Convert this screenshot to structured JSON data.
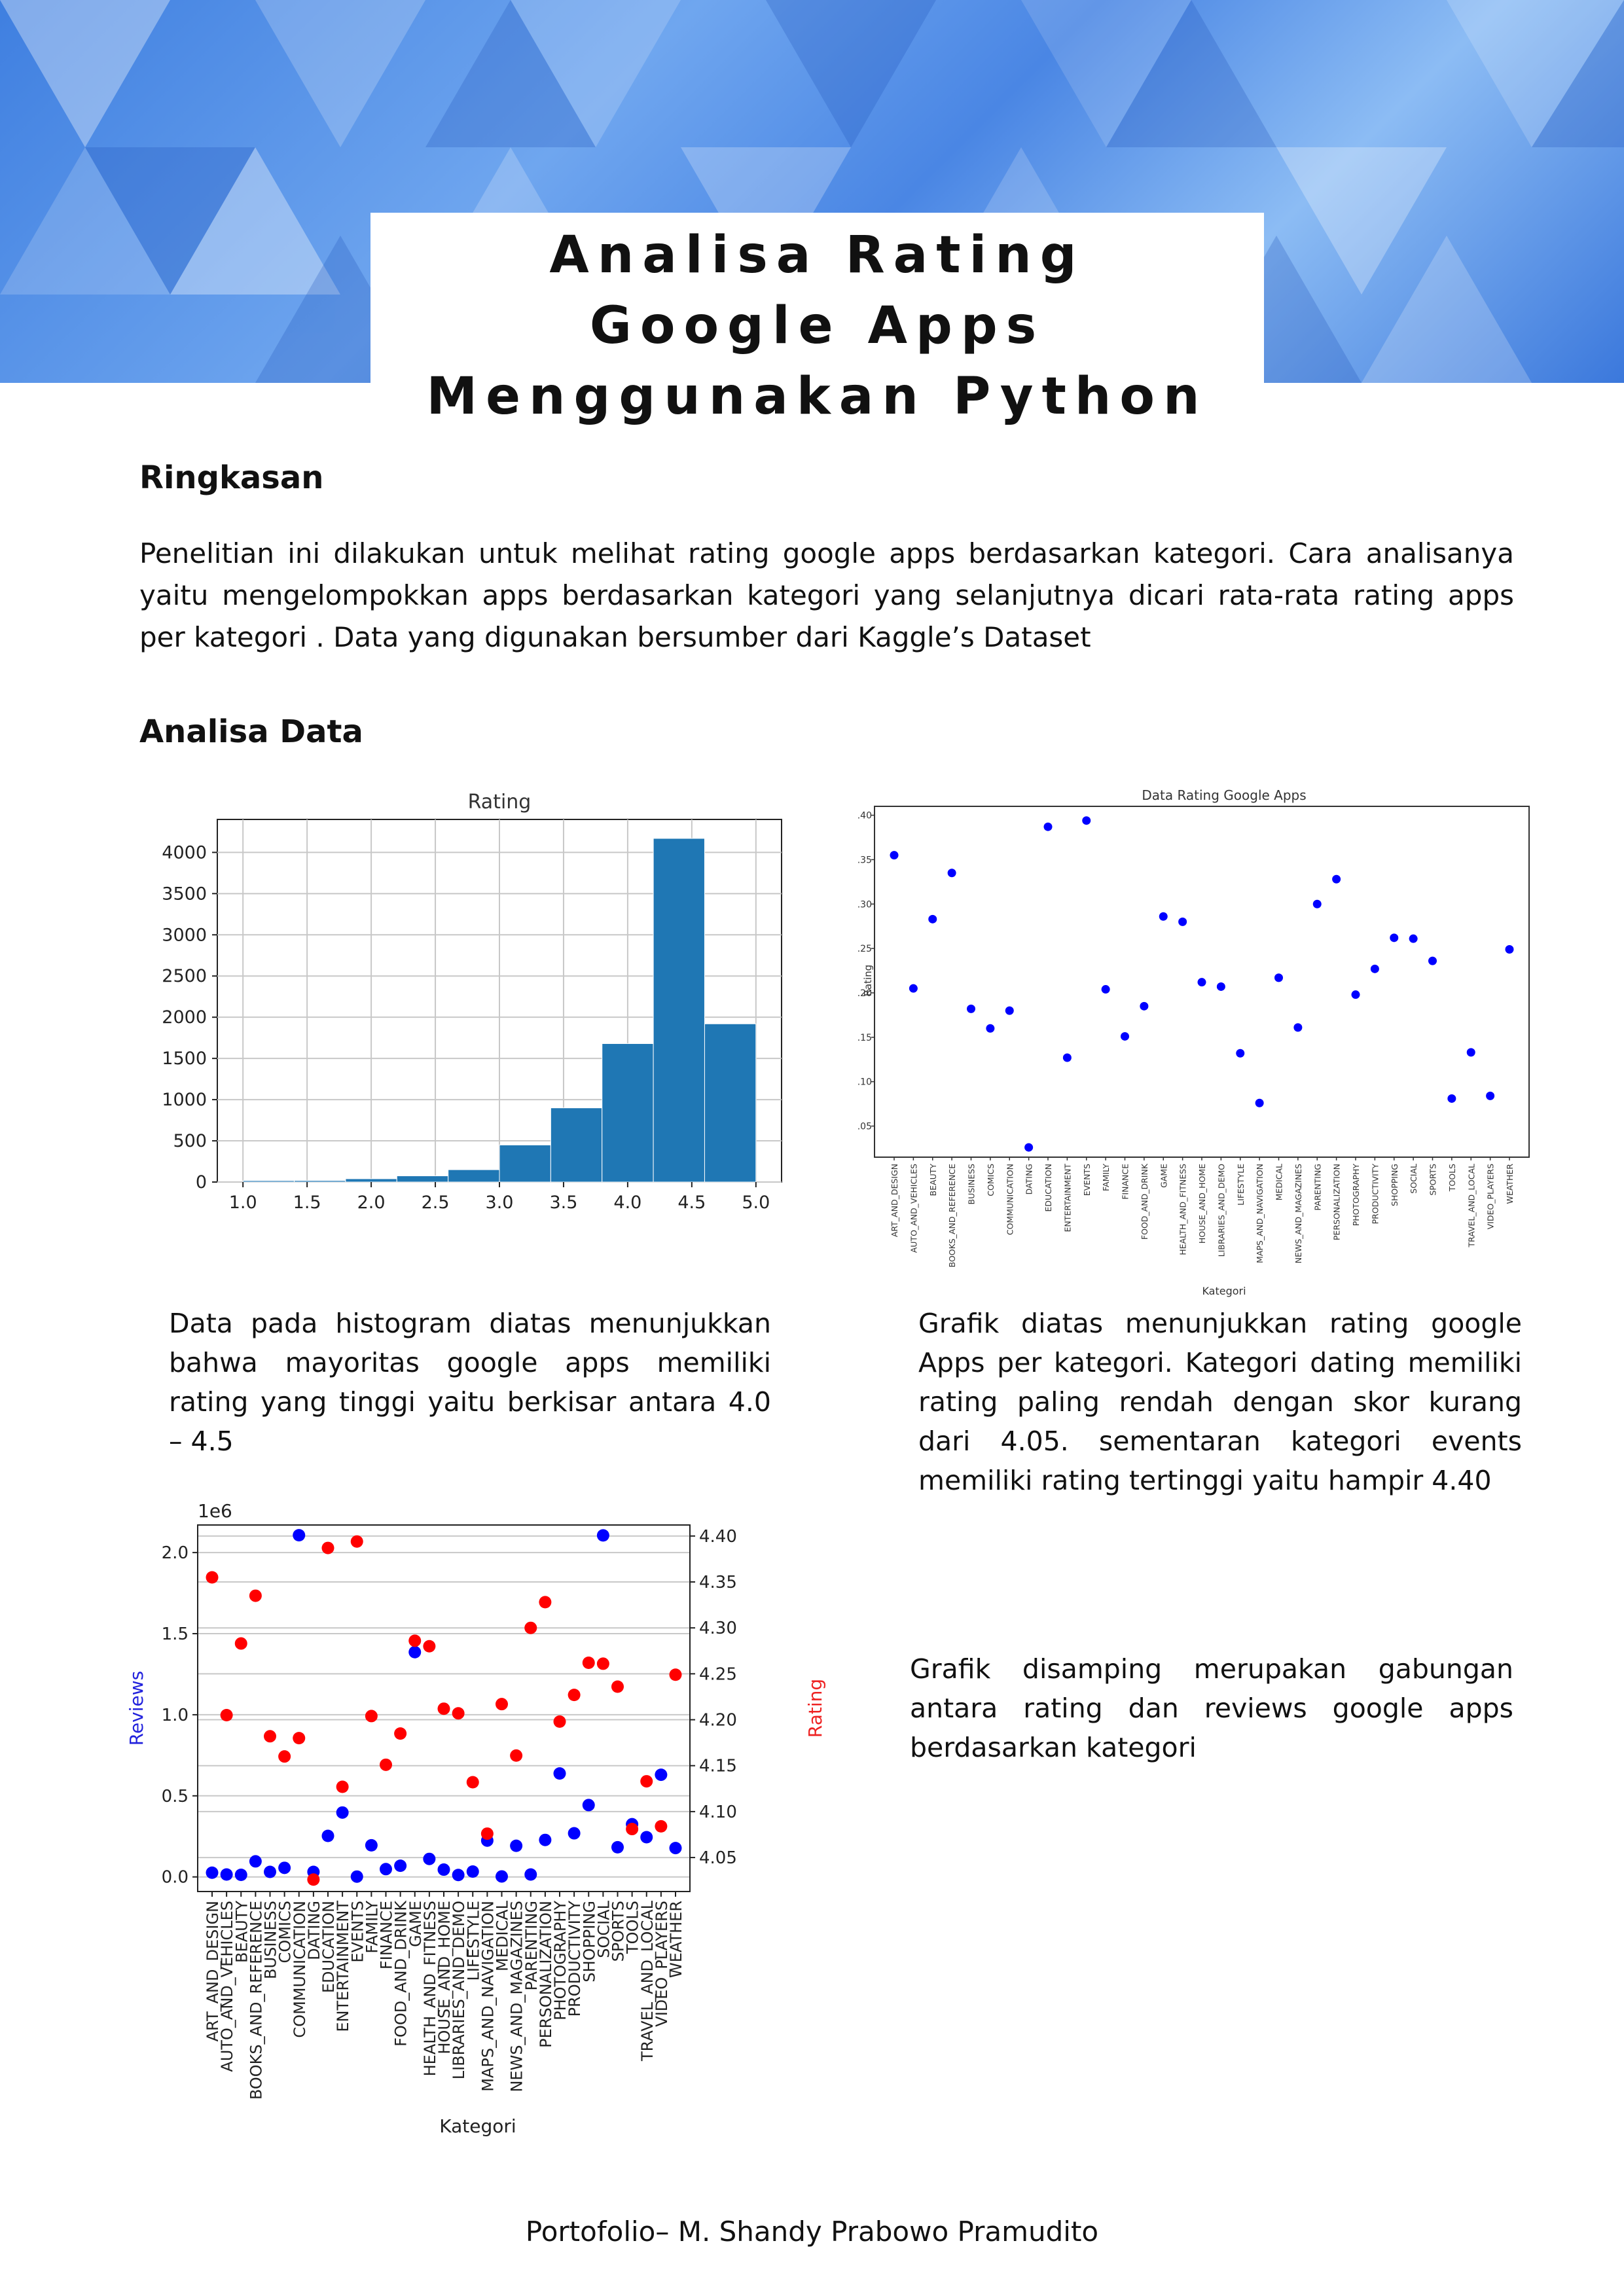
{
  "document": {
    "title": "Analisa Rating Google Apps Menggunakan Python",
    "footer": "Portofolio– M. Shandy Prabowo Pramudito"
  },
  "sections": {
    "summary": {
      "heading": "Ringkasan",
      "text": "Penelitian ini dilakukan untuk melihat rating google apps berdasarkan kategori. Cara analisanya yaitu mengelompokkan apps berdasarkan kategori yang selanjutnya dicari rata-rata rating apps per kategori . Data yang digunakan bersumber dari Kaggle’s Dataset"
    },
    "analysis": {
      "heading": "Analisa Data",
      "histogram_caption": "Data pada histogram diatas menunjukkan bahwa mayoritas google apps memiliki rating yang tinggi yaitu berkisar antara 4.0 – 4.5",
      "scatter_caption": "Grafik diatas menunjukkan rating google Apps per kategori. Kategori dating memiliki rating paling rendah dengan skor kurang dari 4.05. sementaran kategori events memiliki rating tertinggi yaitu hampir 4.40",
      "combined_caption": "Grafik disamping merupakan gabungan antara rating dan reviews google apps berdasarkan kategori"
    }
  },
  "chart_data": [
    {
      "type": "bar",
      "title": "Rating",
      "xlabel": "",
      "ylabel": "",
      "bin_edges": [
        1.0,
        1.4,
        1.8,
        2.2,
        2.6,
        3.0,
        3.4,
        3.8,
        4.2,
        4.6,
        5.0
      ],
      "values": [
        17,
        18,
        40,
        75,
        150,
        450,
        900,
        1680,
        4170,
        1920
      ],
      "xticks": [
        "1.0",
        "1.5",
        "2.0",
        "2.5",
        "3.0",
        "3.5",
        "4.0",
        "4.5",
        "5.0"
      ],
      "yticks": [
        "0",
        "500",
        "1000",
        "1500",
        "2000",
        "2500",
        "3000",
        "3500",
        "4000"
      ],
      "xlim": [
        0.8,
        5.2
      ],
      "ylim": [
        0,
        4400
      ],
      "grid": true,
      "color": "#1f77b4"
    },
    {
      "type": "scatter",
      "title": "Data Rating Google Apps",
      "xlabel": "Kategori",
      "ylabel": "Rating",
      "categories": [
        "ART_AND_DESIGN",
        "AUTO_AND_VEHICLES",
        "BEAUTY",
        "BOOKS_AND_REFERENCE",
        "BUSINESS",
        "COMICS",
        "COMMUNICATION",
        "DATING",
        "EDUCATION",
        "ENTERTAINMENT",
        "EVENTS",
        "FAMILY",
        "FINANCE",
        "FOOD_AND_DRINK",
        "GAME",
        "HEALTH_AND_FITNESS",
        "HOUSE_AND_HOME",
        "LIBRARIES_AND_DEMO",
        "LIFESTYLE",
        "MAPS_AND_NAVIGATION",
        "MEDICAL",
        "NEWS_AND_MAGAZINES",
        "PARENTING",
        "PERSONALIZATION",
        "PHOTOGRAPHY",
        "PRODUCTIVITY",
        "SHOPPING",
        "SOCIAL",
        "SPORTS",
        "TOOLS",
        "TRAVEL_AND_LOCAL",
        "VIDEO_PLAYERS",
        "WEATHER"
      ],
      "values": [
        4.355,
        4.205,
        4.283,
        4.335,
        4.182,
        4.16,
        4.18,
        4.026,
        4.387,
        4.127,
        4.394,
        4.204,
        4.151,
        4.185,
        4.286,
        4.28,
        4.212,
        4.207,
        4.132,
        4.076,
        4.217,
        4.161,
        4.3,
        4.328,
        4.198,
        4.227,
        4.262,
        4.261,
        4.236,
        4.081,
        4.133,
        4.084,
        4.249
      ],
      "yticks": [
        "4.05",
        "4.10",
        "4.15",
        "4.20",
        "4.25",
        "4.30",
        "4.35",
        "4.40"
      ],
      "ylim": [
        4.015,
        4.41
      ],
      "grid": false,
      "color": "#0000ff"
    },
    {
      "type": "scatter",
      "title": "",
      "xlabel": "Kategori",
      "ylabel": "Reviews",
      "ylabel_right": "Rating",
      "offset_label": "1e6",
      "categories": [
        "ART_AND_DESIGN",
        "AUTO_AND_VEHICLES",
        "BEAUTY",
        "BOOKS_AND_REFERENCE",
        "BUSINESS",
        "COMICS",
        "COMMUNICATION",
        "DATING",
        "EDUCATION",
        "ENTERTAINMENT",
        "EVENTS",
        "FAMILY",
        "FINANCE",
        "FOOD_AND_DRINK",
        "GAME",
        "HEALTH_AND_FITNESS",
        "HOUSE_AND_HOME",
        "LIBRARIES_AND_DEMO",
        "LIFESTYLE",
        "MAPS_AND_NAVIGATION",
        "MEDICAL",
        "NEWS_AND_MAGAZINES",
        "PARENTING",
        "PERSONALIZATION",
        "PHOTOGRAPHY",
        "PRODUCTIVITY",
        "SHOPPING",
        "SOCIAL",
        "SPORTS",
        "TOOLS",
        "TRAVEL_AND_LOCAL",
        "VIDEO_PLAYERS",
        "WEATHER"
      ],
      "series": [
        {
          "name": "Reviews",
          "axis": "left",
          "color": "#0000ff",
          "values": [
            0.026,
            0.015,
            0.013,
            0.096,
            0.031,
            0.056,
            2.107,
            0.031,
            0.253,
            0.397,
            0.002,
            0.195,
            0.048,
            0.069,
            1.386,
            0.111,
            0.045,
            0.012,
            0.033,
            0.224,
            0.003,
            0.192,
            0.015,
            0.228,
            0.638,
            0.269,
            0.443,
            2.106,
            0.183,
            0.325,
            0.245,
            0.63,
            0.178
          ]
        },
        {
          "name": "Rating",
          "axis": "right",
          "color": "#ff0000",
          "values": [
            4.355,
            4.205,
            4.283,
            4.335,
            4.182,
            4.16,
            4.18,
            4.026,
            4.387,
            4.127,
            4.394,
            4.204,
            4.151,
            4.185,
            4.286,
            4.28,
            4.212,
            4.207,
            4.132,
            4.076,
            4.217,
            4.161,
            4.3,
            4.328,
            4.198,
            4.227,
            4.262,
            4.261,
            4.236,
            4.081,
            4.133,
            4.084,
            4.249
          ]
        }
      ],
      "yticks_left": [
        "0.0",
        "0.5",
        "1.0",
        "1.5",
        "2.0"
      ],
      "yticks_right": [
        "4.05",
        "4.10",
        "4.15",
        "4.20",
        "4.25",
        "4.30",
        "4.35",
        "4.40"
      ],
      "ylim_left": [
        -0.09,
        2.17
      ],
      "ylim_right": [
        4.013,
        4.412
      ],
      "grid": true
    }
  ]
}
